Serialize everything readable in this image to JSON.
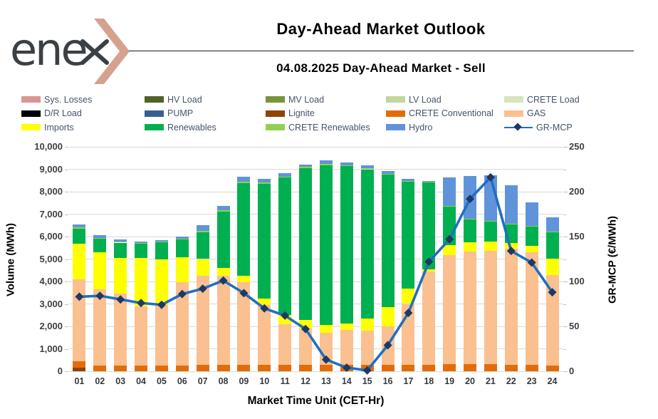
{
  "header": {
    "logo_prefix": "ene",
    "title": "Day-Ahead Market Outlook",
    "subtitle": "04.08.2025  Day-Ahead Market - Sell"
  },
  "colors": {
    "accent_logo_chevron": "#d5a28f",
    "logo_text": "#3b4045",
    "gridline": "#d9d9d9",
    "mcp_line": "#1f6fc0",
    "mcp_marker": "#1f3864"
  },
  "legend": {
    "items": [
      {
        "label": "Sys. Losses",
        "color": "#d99694",
        "type": "swatch"
      },
      {
        "label": "HV Load",
        "color": "#4f6228",
        "type": "swatch"
      },
      {
        "label": "MV Load",
        "color": "#77933c",
        "type": "swatch"
      },
      {
        "label": "LV Load",
        "color": "#c3d69b",
        "type": "swatch"
      },
      {
        "label": "CRETE Load",
        "color": "#d7e4bc",
        "type": "swatch"
      },
      {
        "label": "D/R Load",
        "color": "#000000",
        "type": "swatch"
      },
      {
        "label": "PUMP",
        "color": "#376092",
        "type": "swatch"
      },
      {
        "label": "Lignite",
        "color": "#8f4408",
        "type": "swatch"
      },
      {
        "label": "CRETE Conventional",
        "color": "#e36c09",
        "type": "swatch"
      },
      {
        "label": "GAS",
        "color": "#fac090",
        "type": "swatch"
      },
      {
        "label": "Imports",
        "color": "#ffff00",
        "type": "swatch"
      },
      {
        "label": "Renewables",
        "color": "#00b050",
        "type": "swatch"
      },
      {
        "label": "CRETE Renewables",
        "color": "#92d050",
        "type": "swatch"
      },
      {
        "label": "Hydro",
        "color": "#5f94da",
        "type": "swatch"
      },
      {
        "label": "GR-MCP",
        "color": "#1f3864",
        "line_color": "#1f6fc0",
        "type": "line"
      }
    ]
  },
  "chart_data": {
    "type": "bar",
    "stacked": true,
    "grid": true,
    "categories": [
      "01",
      "02",
      "03",
      "04",
      "05",
      "06",
      "07",
      "08",
      "09",
      "10",
      "11",
      "12",
      "13",
      "14",
      "15",
      "16",
      "17",
      "18",
      "19",
      "20",
      "21",
      "22",
      "23",
      "24"
    ],
    "series": [
      {
        "name": "Lignite",
        "color": "#8f4408",
        "values": [
          150,
          0,
          0,
          0,
          0,
          0,
          0,
          0,
          0,
          0,
          0,
          0,
          0,
          0,
          0,
          0,
          0,
          0,
          0,
          0,
          0,
          0,
          0,
          0
        ]
      },
      {
        "name": "CRETE Conventional",
        "color": "#e36c09",
        "values": [
          280,
          250,
          250,
          250,
          250,
          250,
          270,
          300,
          280,
          280,
          280,
          300,
          280,
          280,
          280,
          300,
          300,
          300,
          320,
          320,
          320,
          300,
          280,
          250
        ]
      },
      {
        "name": "GAS",
        "color": "#fac090",
        "values": [
          3670,
          3410,
          3220,
          2650,
          2700,
          3730,
          3980,
          3950,
          3700,
          2670,
          1820,
          1600,
          1420,
          1550,
          1520,
          1700,
          2700,
          4140,
          4840,
          5000,
          5040,
          5150,
          5030,
          4020
        ]
      },
      {
        "name": "Imports",
        "color": "#ffff00",
        "values": [
          1580,
          1640,
          1580,
          2150,
          2050,
          1100,
          750,
          350,
          280,
          300,
          400,
          400,
          350,
          310,
          560,
          850,
          670,
          100,
          450,
          440,
          420,
          250,
          290,
          760
        ]
      },
      {
        "name": "Renewables",
        "color": "#00b050",
        "values": [
          660,
          600,
          680,
          630,
          750,
          780,
          1200,
          2500,
          4130,
          5110,
          6130,
          6750,
          7130,
          7000,
          6640,
          5920,
          4780,
          3860,
          1740,
          1020,
          900,
          840,
          850,
          1180
        ]
      },
      {
        "name": "CRETE Renewables",
        "color": "#92d050",
        "values": [
          60,
          50,
          40,
          30,
          30,
          40,
          60,
          60,
          50,
          50,
          50,
          50,
          60,
          50,
          50,
          30,
          30,
          30,
          20,
          20,
          20,
          20,
          20,
          20
        ]
      },
      {
        "name": "Hydro",
        "color": "#5f94da",
        "values": [
          130,
          110,
          90,
          60,
          50,
          100,
          240,
          190,
          220,
          150,
          130,
          110,
          160,
          120,
          130,
          130,
          80,
          50,
          1250,
          1910,
          2040,
          1720,
          1050,
          640
        ]
      }
    ],
    "line_series": {
      "name": "GR-MCP",
      "color": "#1f6fc0",
      "marker_color": "#1f3864",
      "values": [
        83,
        84,
        80,
        76,
        74,
        86,
        92,
        101,
        87,
        70,
        62,
        47,
        13,
        4,
        1,
        29,
        65,
        122,
        147,
        192,
        216,
        134,
        121,
        88
      ]
    },
    "left_axis": {
      "label": "Volume (MWh)",
      "min": 0,
      "max": 10000,
      "step": 1000
    },
    "right_axis": {
      "label": "GR-MCP (€/MWh)",
      "min": 0,
      "max": 250,
      "step": 50,
      "minor_step": 25
    },
    "xlabel": "Market Time Unit (CET-Hr)"
  }
}
